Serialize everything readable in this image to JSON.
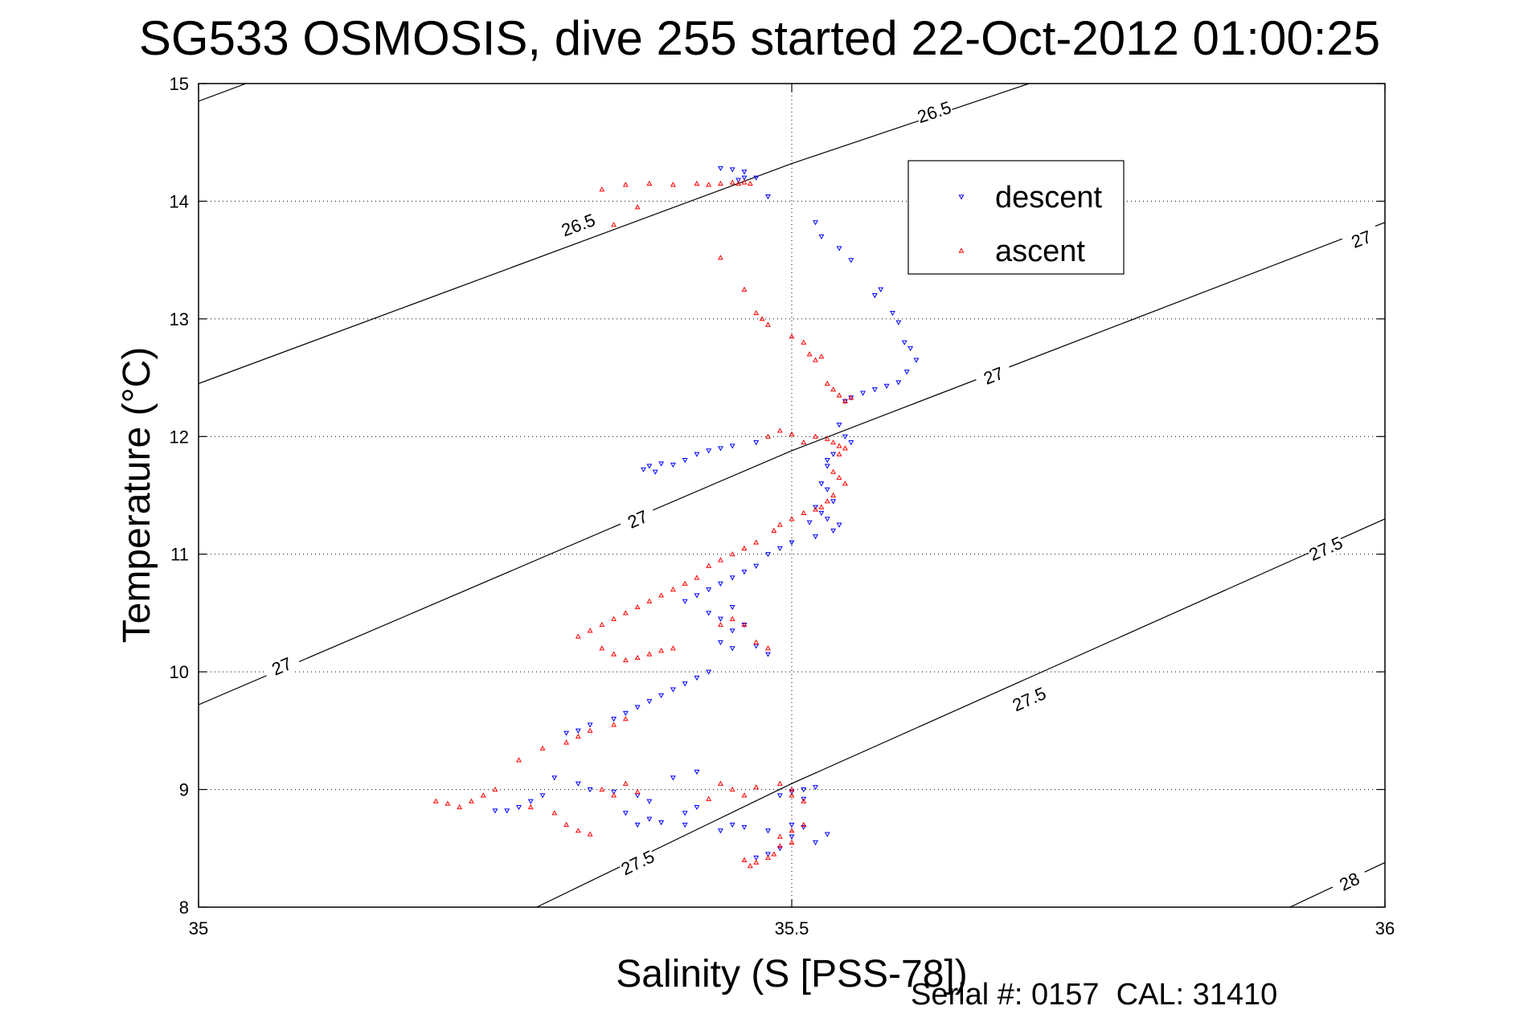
{
  "chart_data": {
    "type": "scatter",
    "title": "SG533 OSMOSIS, dive 255 started 22-Oct-2012 01:00:25",
    "xlabel": "Salinity (S [PSS-78])",
    "ylabel": "Temperature (°C)",
    "xlim": [
      35,
      36
    ],
    "ylim": [
      8,
      15
    ],
    "x_ticks": [
      "35",
      "35.5",
      "36"
    ],
    "y_ticks": [
      "8",
      "9",
      "10",
      "11",
      "12",
      "13",
      "14",
      "15"
    ],
    "grid": "dotted",
    "legend_position": "top-right",
    "footer": "Serial #: 0157  CAL: 31410",
    "contours": [
      {
        "level": "26.5",
        "points": [
          [
            35,
            12.45
          ],
          [
            35.5,
            14.32
          ],
          [
            35.7,
            15.0
          ]
        ],
        "labels": [
          [
            35.32,
            13.8
          ],
          [
            35.62,
            14.76
          ]
        ]
      },
      {
        "level": "26.5",
        "points": [
          [
            35,
            14.85
          ],
          [
            35.04,
            15.0
          ]
        ],
        "labels": []
      },
      {
        "level": "27",
        "points": [
          [
            35,
            9.72
          ],
          [
            35.5,
            11.88
          ],
          [
            36,
            13.82
          ]
        ],
        "labels": [
          [
            35.07,
            10.05
          ],
          [
            35.37,
            11.3
          ],
          [
            35.67,
            12.52
          ],
          [
            35.98,
            13.68
          ]
        ]
      },
      {
        "level": "27.5",
        "points": [
          [
            35.285,
            8.0
          ],
          [
            35.5,
            9.05
          ],
          [
            36,
            11.3
          ]
        ],
        "labels": [
          [
            35.37,
            8.38
          ],
          [
            35.7,
            9.77
          ],
          [
            35.95,
            11.05
          ]
        ]
      },
      {
        "level": "28",
        "points": [
          [
            35.92,
            8.0
          ],
          [
            36,
            8.38
          ]
        ],
        "labels": [
          [
            35.97,
            8.22
          ]
        ]
      }
    ],
    "series": [
      {
        "name": "descent",
        "color": "#0000ff",
        "marker": "triangle-down",
        "points": [
          [
            35.44,
            14.28
          ],
          [
            35.45,
            14.27
          ],
          [
            35.46,
            14.25
          ],
          [
            35.47,
            14.2
          ],
          [
            35.455,
            14.18
          ],
          [
            35.46,
            14.2
          ],
          [
            35.48,
            14.04
          ],
          [
            35.52,
            13.82
          ],
          [
            35.525,
            13.7
          ],
          [
            35.54,
            13.6
          ],
          [
            35.55,
            13.5
          ],
          [
            35.57,
            13.2
          ],
          [
            35.575,
            13.25
          ],
          [
            35.585,
            13.05
          ],
          [
            35.59,
            12.97
          ],
          [
            35.595,
            12.8
          ],
          [
            35.6,
            12.75
          ],
          [
            35.605,
            12.65
          ],
          [
            35.597,
            12.55
          ],
          [
            35.59,
            12.46
          ],
          [
            35.58,
            12.43
          ],
          [
            35.57,
            12.4
          ],
          [
            35.56,
            12.37
          ],
          [
            35.55,
            12.33
          ],
          [
            35.545,
            12.3
          ],
          [
            35.54,
            12.1
          ],
          [
            35.545,
            12.0
          ],
          [
            35.55,
            11.95
          ],
          [
            35.535,
            11.85
          ],
          [
            35.53,
            11.8
          ],
          [
            35.53,
            11.75
          ],
          [
            35.525,
            11.6
          ],
          [
            35.53,
            11.55
          ],
          [
            35.535,
            11.45
          ],
          [
            35.52,
            11.4
          ],
          [
            35.525,
            11.35
          ],
          [
            35.53,
            11.3
          ],
          [
            35.54,
            11.25
          ],
          [
            35.535,
            11.2
          ],
          [
            35.52,
            11.15
          ],
          [
            35.515,
            11.27
          ],
          [
            35.5,
            11.1
          ],
          [
            35.49,
            11.05
          ],
          [
            35.48,
            11.0
          ],
          [
            35.47,
            10.9
          ],
          [
            35.46,
            10.85
          ],
          [
            35.45,
            10.8
          ],
          [
            35.44,
            10.75
          ],
          [
            35.43,
            10.7
          ],
          [
            35.42,
            10.65
          ],
          [
            35.41,
            10.6
          ],
          [
            35.38,
            11.75
          ],
          [
            35.39,
            11.77
          ],
          [
            35.4,
            11.76
          ],
          [
            35.41,
            11.8
          ],
          [
            35.42,
            11.85
          ],
          [
            35.43,
            11.88
          ],
          [
            35.44,
            11.9
          ],
          [
            35.45,
            11.92
          ],
          [
            35.47,
            11.95
          ],
          [
            35.375,
            11.72
          ],
          [
            35.385,
            11.7
          ],
          [
            35.43,
            10.5
          ],
          [
            35.45,
            10.55
          ],
          [
            35.44,
            10.45
          ],
          [
            35.46,
            10.4
          ],
          [
            35.45,
            10.35
          ],
          [
            35.44,
            10.25
          ],
          [
            35.45,
            10.2
          ],
          [
            35.47,
            10.22
          ],
          [
            35.48,
            10.15
          ],
          [
            35.43,
            10.0
          ],
          [
            35.42,
            9.95
          ],
          [
            35.41,
            9.9
          ],
          [
            35.4,
            9.85
          ],
          [
            35.39,
            9.8
          ],
          [
            35.38,
            9.75
          ],
          [
            35.37,
            9.7
          ],
          [
            35.36,
            9.65
          ],
          [
            35.35,
            9.6
          ],
          [
            35.33,
            9.55
          ],
          [
            35.32,
            9.5
          ],
          [
            35.31,
            9.48
          ],
          [
            35.3,
            9.1
          ],
          [
            35.32,
            9.05
          ],
          [
            35.33,
            9.0
          ],
          [
            35.35,
            8.98
          ],
          [
            35.37,
            8.95
          ],
          [
            35.38,
            8.9
          ],
          [
            35.29,
            8.95
          ],
          [
            35.28,
            8.9
          ],
          [
            35.27,
            8.85
          ],
          [
            35.26,
            8.82
          ],
          [
            35.25,
            8.82
          ],
          [
            35.36,
            8.8
          ],
          [
            35.38,
            8.75
          ],
          [
            35.37,
            8.7
          ],
          [
            35.39,
            8.72
          ],
          [
            35.41,
            8.7
          ],
          [
            35.41,
            8.8
          ],
          [
            35.42,
            8.85
          ],
          [
            35.44,
            8.65
          ],
          [
            35.45,
            8.7
          ],
          [
            35.46,
            8.68
          ],
          [
            35.48,
            8.65
          ],
          [
            35.5,
            8.6
          ],
          [
            35.52,
            8.55
          ],
          [
            35.53,
            8.62
          ],
          [
            35.51,
            8.68
          ],
          [
            35.5,
            8.7
          ],
          [
            35.49,
            8.5
          ],
          [
            35.48,
            8.45
          ],
          [
            35.47,
            8.42
          ],
          [
            35.49,
            8.95
          ],
          [
            35.5,
            8.98
          ],
          [
            35.51,
            9.0
          ],
          [
            35.52,
            9.02
          ],
          [
            35.51,
            8.92
          ],
          [
            35.4,
            9.1
          ],
          [
            35.42,
            9.15
          ]
        ]
      },
      {
        "name": "ascent",
        "color": "#ff0000",
        "marker": "triangle-up",
        "points": [
          [
            35.34,
            14.1
          ],
          [
            35.36,
            14.14
          ],
          [
            35.38,
            14.15
          ],
          [
            35.4,
            14.14
          ],
          [
            35.42,
            14.15
          ],
          [
            35.43,
            14.14
          ],
          [
            35.44,
            14.15
          ],
          [
            35.45,
            14.16
          ],
          [
            35.455,
            14.15
          ],
          [
            35.46,
            14.16
          ],
          [
            35.465,
            14.15
          ],
          [
            35.37,
            13.95
          ],
          [
            35.35,
            13.8
          ],
          [
            35.44,
            13.52
          ],
          [
            35.46,
            13.25
          ],
          [
            35.47,
            13.05
          ],
          [
            35.475,
            13.0
          ],
          [
            35.48,
            12.95
          ],
          [
            35.5,
            12.85
          ],
          [
            35.51,
            12.8
          ],
          [
            35.515,
            12.7
          ],
          [
            35.52,
            12.65
          ],
          [
            35.525,
            12.68
          ],
          [
            35.53,
            12.45
          ],
          [
            35.535,
            12.4
          ],
          [
            35.54,
            12.35
          ],
          [
            35.545,
            12.3
          ],
          [
            35.55,
            12.33
          ],
          [
            35.5,
            12.02
          ],
          [
            35.48,
            12.0
          ],
          [
            35.49,
            12.05
          ],
          [
            35.51,
            11.95
          ],
          [
            35.52,
            12.0
          ],
          [
            35.53,
            11.98
          ],
          [
            35.535,
            11.95
          ],
          [
            35.54,
            11.92
          ],
          [
            35.545,
            11.9
          ],
          [
            35.54,
            11.85
          ],
          [
            35.535,
            11.7
          ],
          [
            35.54,
            11.65
          ],
          [
            35.545,
            11.6
          ],
          [
            35.535,
            11.5
          ],
          [
            35.53,
            11.45
          ],
          [
            35.525,
            11.4
          ],
          [
            35.52,
            11.38
          ],
          [
            35.51,
            11.35
          ],
          [
            35.5,
            11.3
          ],
          [
            35.49,
            11.25
          ],
          [
            35.485,
            11.2
          ],
          [
            35.47,
            11.1
          ],
          [
            35.46,
            11.05
          ],
          [
            35.45,
            11.0
          ],
          [
            35.44,
            10.95
          ],
          [
            35.43,
            10.9
          ],
          [
            35.42,
            10.8
          ],
          [
            35.41,
            10.75
          ],
          [
            35.4,
            10.7
          ],
          [
            35.39,
            10.65
          ],
          [
            35.38,
            10.6
          ],
          [
            35.37,
            10.55
          ],
          [
            35.36,
            10.5
          ],
          [
            35.35,
            10.45
          ],
          [
            35.34,
            10.4
          ],
          [
            35.33,
            10.35
          ],
          [
            35.32,
            10.3
          ],
          [
            35.34,
            10.2
          ],
          [
            35.35,
            10.15
          ],
          [
            35.36,
            10.1
          ],
          [
            35.37,
            10.12
          ],
          [
            35.38,
            10.15
          ],
          [
            35.39,
            10.18
          ],
          [
            35.4,
            10.2
          ],
          [
            35.47,
            10.25
          ],
          [
            35.48,
            10.2
          ],
          [
            35.44,
            10.4
          ],
          [
            35.45,
            10.45
          ],
          [
            35.46,
            10.4
          ],
          [
            35.36,
            9.6
          ],
          [
            35.35,
            9.55
          ],
          [
            35.33,
            9.5
          ],
          [
            35.32,
            9.45
          ],
          [
            35.31,
            9.4
          ],
          [
            35.29,
            9.35
          ],
          [
            35.27,
            9.25
          ],
          [
            35.25,
            9.0
          ],
          [
            35.24,
            8.95
          ],
          [
            35.23,
            8.9
          ],
          [
            35.22,
            8.85
          ],
          [
            35.21,
            8.88
          ],
          [
            35.2,
            8.9
          ],
          [
            35.28,
            8.85
          ],
          [
            35.3,
            8.8
          ],
          [
            35.31,
            8.7
          ],
          [
            35.32,
            8.65
          ],
          [
            35.33,
            8.62
          ],
          [
            35.34,
            9.0
          ],
          [
            35.35,
            8.95
          ],
          [
            35.36,
            9.05
          ],
          [
            35.37,
            8.98
          ],
          [
            35.44,
            9.05
          ],
          [
            35.45,
            9.0
          ],
          [
            35.46,
            8.95
          ],
          [
            35.47,
            9.02
          ],
          [
            35.43,
            8.92
          ],
          [
            35.49,
            9.05
          ],
          [
            35.5,
            9.0
          ],
          [
            35.5,
            8.95
          ],
          [
            35.51,
            8.9
          ],
          [
            35.46,
            8.4
          ],
          [
            35.465,
            8.35
          ],
          [
            35.47,
            8.38
          ],
          [
            35.48,
            8.42
          ],
          [
            35.485,
            8.45
          ],
          [
            35.49,
            8.6
          ],
          [
            35.5,
            8.65
          ],
          [
            35.51,
            8.7
          ],
          [
            35.5,
            8.55
          ],
          [
            35.49,
            8.52
          ]
        ]
      }
    ]
  }
}
